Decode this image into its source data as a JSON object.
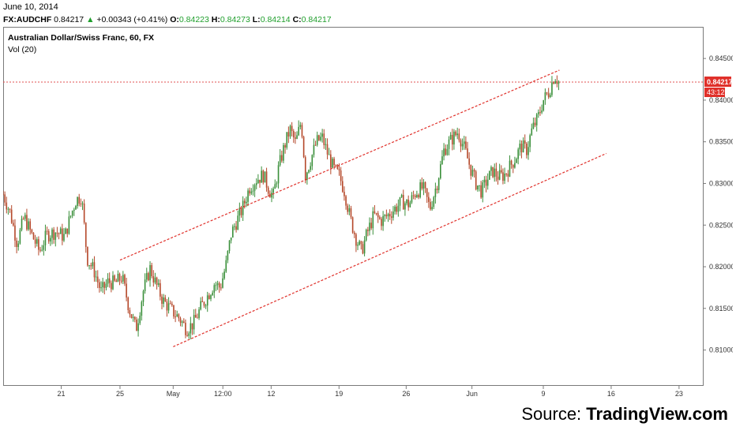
{
  "header": {
    "date": "June 10, 2014",
    "symbol": "FX:AUDCHF",
    "last": "0.84217",
    "arrow": "▲",
    "change": "+0.00343 (+0.41%)",
    "o_label": "O:",
    "o_value": "0.84223",
    "h_label": "H:",
    "h_value": "0.84273",
    "l_label": "L:",
    "l_value": "0.84214",
    "c_label": "C:",
    "c_value": "0.84217"
  },
  "chart_data": {
    "type": "candlestick",
    "title": "Australian Dollar/Swiss Franc, 60, FX",
    "indicator": "Vol (20)",
    "x_ticks": [
      "21",
      "25",
      "May",
      "12:00",
      "12",
      "19",
      "26",
      "Jun",
      "9",
      "16",
      "23"
    ],
    "y_ticks": [
      "0.84500",
      "0.84000",
      "0.83500",
      "0.83000",
      "0.82500",
      "0.82000",
      "0.81500",
      "0.81000"
    ],
    "ylim": [
      0.8057,
      0.8488
    ],
    "last_price_label": "0.84217",
    "countdown_label": "43:12",
    "colors": {
      "up": "#3a8f3a",
      "down": "#b5482a",
      "trendline": "#e0302a",
      "price_line": "#e05050",
      "price_tag": "#e0302a"
    },
    "trend_channel": {
      "upper": {
        "start": [
          0.167,
          0.8208
        ],
        "end": [
          0.795,
          0.8436
        ]
      },
      "lower": {
        "start": [
          0.243,
          0.8104
        ],
        "end": [
          0.862,
          0.8336
        ]
      }
    },
    "price_path": [
      [
        0.0,
        0.8287
      ],
      [
        0.01,
        0.8265
      ],
      [
        0.02,
        0.8228
      ],
      [
        0.03,
        0.826
      ],
      [
        0.04,
        0.824
      ],
      [
        0.052,
        0.8218
      ],
      [
        0.062,
        0.8238
      ],
      [
        0.075,
        0.8242
      ],
      [
        0.088,
        0.8236
      ],
      [
        0.096,
        0.826
      ],
      [
        0.104,
        0.828
      ],
      [
        0.112,
        0.8285
      ],
      [
        0.12,
        0.821
      ],
      [
        0.13,
        0.8195
      ],
      [
        0.14,
        0.817
      ],
      [
        0.15,
        0.8182
      ],
      [
        0.16,
        0.818
      ],
      [
        0.17,
        0.8188
      ],
      [
        0.18,
        0.815
      ],
      [
        0.19,
        0.8125
      ],
      [
        0.2,
        0.817
      ],
      [
        0.21,
        0.8198
      ],
      [
        0.218,
        0.818
      ],
      [
        0.228,
        0.816
      ],
      [
        0.24,
        0.8148
      ],
      [
        0.252,
        0.8138
      ],
      [
        0.262,
        0.8125
      ],
      [
        0.272,
        0.8132
      ],
      [
        0.282,
        0.815
      ],
      [
        0.292,
        0.8165
      ],
      [
        0.302,
        0.818
      ],
      [
        0.31,
        0.8175
      ],
      [
        0.318,
        0.82
      ],
      [
        0.326,
        0.824
      ],
      [
        0.334,
        0.8255
      ],
      [
        0.342,
        0.827
      ],
      [
        0.352,
        0.8295
      ],
      [
        0.362,
        0.8305
      ],
      [
        0.372,
        0.831
      ],
      [
        0.38,
        0.8292
      ],
      [
        0.386,
        0.8285
      ],
      [
        0.394,
        0.832
      ],
      [
        0.402,
        0.8345
      ],
      [
        0.41,
        0.8365
      ],
      [
        0.418,
        0.8348
      ],
      [
        0.426,
        0.8375
      ],
      [
        0.432,
        0.831
      ],
      [
        0.44,
        0.833
      ],
      [
        0.448,
        0.835
      ],
      [
        0.456,
        0.8355
      ],
      [
        0.464,
        0.8335
      ],
      [
        0.472,
        0.8318
      ],
      [
        0.48,
        0.831
      ],
      [
        0.488,
        0.829
      ],
      [
        0.496,
        0.8258
      ],
      [
        0.504,
        0.8235
      ],
      [
        0.512,
        0.8218
      ],
      [
        0.52,
        0.824
      ],
      [
        0.53,
        0.8262
      ],
      [
        0.54,
        0.8255
      ],
      [
        0.55,
        0.8262
      ],
      [
        0.56,
        0.827
      ],
      [
        0.57,
        0.8278
      ],
      [
        0.58,
        0.8275
      ],
      [
        0.59,
        0.829
      ],
      [
        0.6,
        0.8295
      ],
      [
        0.61,
        0.827
      ],
      [
        0.62,
        0.83
      ],
      [
        0.63,
        0.834
      ],
      [
        0.64,
        0.8352
      ],
      [
        0.65,
        0.8362
      ],
      [
        0.66,
        0.834
      ],
      [
        0.668,
        0.8318
      ],
      [
        0.676,
        0.83
      ],
      [
        0.684,
        0.829
      ],
      [
        0.692,
        0.8305
      ],
      [
        0.7,
        0.8315
      ],
      [
        0.708,
        0.8308
      ],
      [
        0.716,
        0.831
      ],
      [
        0.724,
        0.832
      ],
      [
        0.732,
        0.833
      ],
      [
        0.74,
        0.8345
      ],
      [
        0.748,
        0.834
      ],
      [
        0.756,
        0.8365
      ],
      [
        0.764,
        0.8378
      ],
      [
        0.772,
        0.84
      ],
      [
        0.78,
        0.841
      ],
      [
        0.788,
        0.843
      ],
      [
        0.794,
        0.8422
      ]
    ]
  },
  "caption": {
    "prefix": "Source: ",
    "brand": "TradingView.com"
  }
}
